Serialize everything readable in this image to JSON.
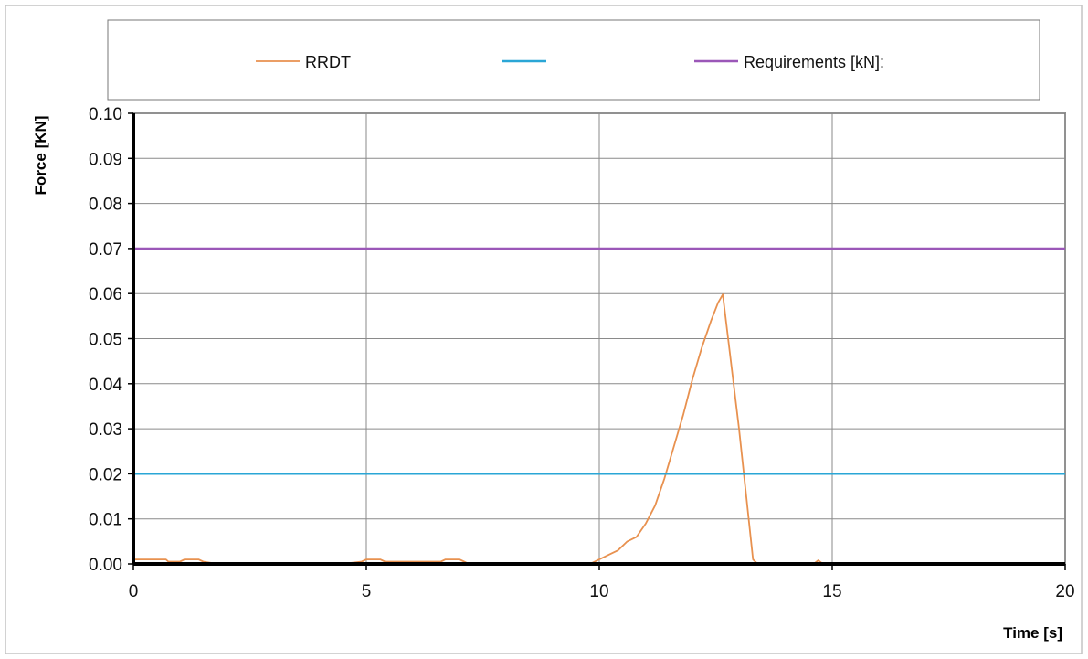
{
  "chart_data": {
    "type": "line",
    "title": "",
    "xlabel": "Time [s]",
    "ylabel": "Force [KN]",
    "xlim": [
      0,
      20
    ],
    "ylim": [
      0,
      0.1
    ],
    "x_ticks": [
      0,
      5,
      10,
      15,
      20
    ],
    "y_ticks": [
      0.0,
      0.01,
      0.02,
      0.03,
      0.04,
      0.05,
      0.06,
      0.07,
      0.08,
      0.09,
      0.1
    ],
    "x_tick_labels": [
      "0",
      "5",
      "10",
      "15",
      "20"
    ],
    "y_tick_labels": [
      "0.00",
      "0.01",
      "0.02",
      "0.03",
      "0.04",
      "0.05",
      "0.06",
      "0.07",
      "0.08",
      "0.09",
      "0.10"
    ],
    "grid": true,
    "legend_position": "top",
    "series": [
      {
        "name": "RRDT",
        "color": "#e8914f",
        "x": [
          0,
          0.7,
          0.75,
          1.0,
          1.1,
          1.4,
          1.5,
          1.8,
          4.5,
          4.9,
          5.0,
          5.3,
          5.4,
          6.6,
          6.7,
          7.0,
          7.1,
          7.2,
          9.8,
          10.0,
          10.2,
          10.4,
          10.6,
          10.8,
          11.0,
          11.2,
          11.4,
          11.6,
          11.8,
          12.0,
          12.2,
          12.4,
          12.55,
          12.65,
          13.0,
          13.3,
          13.4,
          14.6,
          14.7,
          14.8,
          15.0,
          20.0
        ],
        "y": [
          0.001,
          0.001,
          0.0005,
          0.0005,
          0.001,
          0.001,
          0.0005,
          0.0,
          0.0,
          0.0005,
          0.001,
          0.001,
          0.0005,
          0.0005,
          0.001,
          0.001,
          0.0005,
          0.0,
          0.0,
          0.001,
          0.002,
          0.003,
          0.005,
          0.006,
          0.009,
          0.013,
          0.019,
          0.026,
          0.033,
          0.041,
          0.048,
          0.054,
          0.058,
          0.0598,
          0.03,
          0.001,
          0.0,
          0.0,
          0.0008,
          0.0,
          0.0,
          0.0
        ]
      },
      {
        "name": "",
        "color": "#2aa6d6",
        "x": [
          0,
          20
        ],
        "y": [
          0.02,
          0.02
        ]
      },
      {
        "name": "Requirements [kN]:",
        "color": "#9b57b8",
        "x": [
          0,
          20
        ],
        "y": [
          0.07,
          0.07
        ]
      }
    ]
  }
}
